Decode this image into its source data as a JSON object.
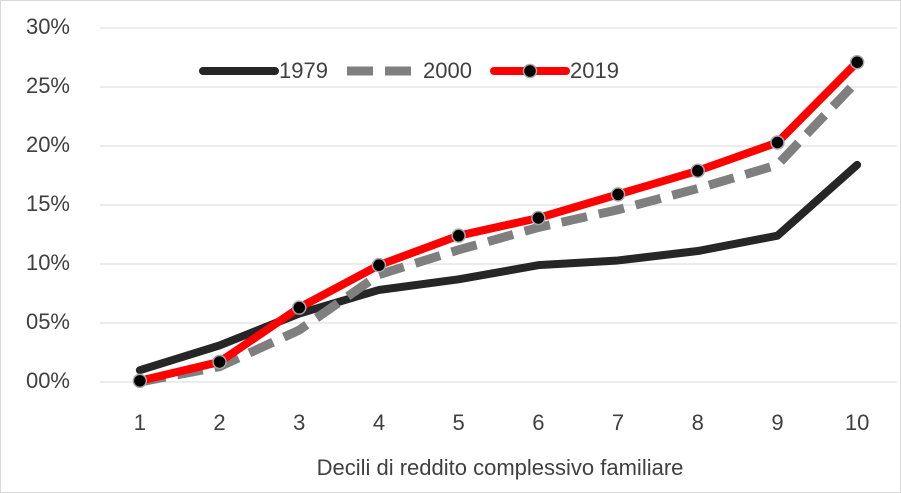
{
  "chart_data": {
    "type": "line",
    "x_label": "Decili di reddito complessivo familiare",
    "categories": [
      "1",
      "2",
      "3",
      "4",
      "5",
      "6",
      "7",
      "8",
      "9",
      "10"
    ],
    "series": [
      {
        "name": "1979",
        "color": "#262626",
        "dashed": false,
        "marker": false,
        "values": [
          1.0,
          3.1,
          5.8,
          7.8,
          8.7,
          9.9,
          10.3,
          11.1,
          12.4,
          18.4
        ]
      },
      {
        "name": "2000",
        "color": "#7f7f7f",
        "dashed": true,
        "marker": false,
        "values": [
          0.0,
          1.3,
          4.4,
          9.1,
          11.2,
          13.1,
          14.6,
          16.4,
          18.4,
          25.5
        ]
      },
      {
        "name": "2019",
        "color": "#ff0000",
        "dashed": false,
        "marker": true,
        "values": [
          0.1,
          1.7,
          6.3,
          9.9,
          12.4,
          13.9,
          15.9,
          17.9,
          20.3,
          27.1
        ]
      }
    ],
    "ylim": [
      0,
      30
    ],
    "yticks": [
      {
        "value": 0,
        "label": "00%"
      },
      {
        "value": 5,
        "label": "05%"
      },
      {
        "value": 10,
        "label": "10%"
      },
      {
        "value": 15,
        "label": "15%"
      },
      {
        "value": 20,
        "label": "20%"
      },
      {
        "value": 25,
        "label": "25%"
      },
      {
        "value": 30,
        "label": "30%"
      }
    ],
    "grid": true,
    "legend": "top"
  }
}
